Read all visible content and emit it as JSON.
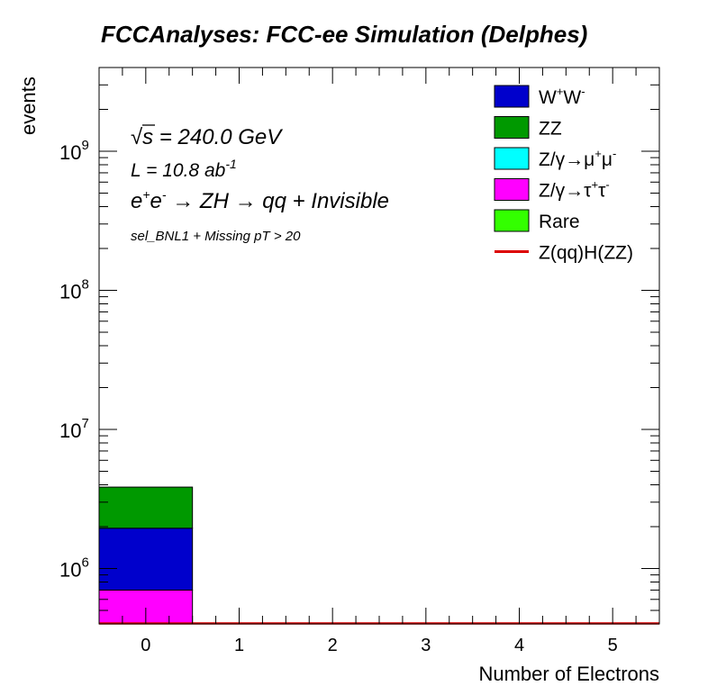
{
  "chart_data": {
    "type": "bar",
    "stacked": true,
    "title": "FCCAnalyses: FCC-ee Simulation (Delphes)",
    "xlabel": "Number of Electrons",
    "ylabel": "events",
    "ylog": true,
    "xlim": [
      -0.5,
      5.5
    ],
    "ylim": [
      400000,
      4000000000
    ],
    "x_ticks": [
      "0",
      "1",
      "2",
      "3",
      "4",
      "5"
    ],
    "y_ticks": [
      {
        "value": 1000000,
        "base": "10",
        "exp": "6"
      },
      {
        "value": 10000000,
        "base": "10",
        "exp": "7"
      },
      {
        "value": 100000000,
        "base": "10",
        "exp": "8"
      },
      {
        "value": 1000000000,
        "base": "10",
        "exp": "9"
      }
    ],
    "annotations": {
      "sqrt_s": {
        "root": "√",
        "s": "s",
        "rest": " = 240.0 GeV"
      },
      "lumi": {
        "main": "L = 10.8 ab",
        "sup": "-1"
      },
      "process": {
        "e1": "e",
        "sup1": "+",
        "e2": "e",
        "sup2": "-",
        "rest": " → ZH → qq + Invisible"
      },
      "selection": "sel_BNL1 + Missing pT > 20"
    },
    "series": [
      {
        "id": "tautau",
        "color": "#ff00ff",
        "values": [
          700000,
          0,
          0,
          0,
          0,
          0
        ]
      },
      {
        "id": "ww",
        "color": "#0000cc",
        "values": [
          1250000,
          0,
          0,
          0,
          0,
          0
        ]
      },
      {
        "id": "zz",
        "color": "#009900",
        "values": [
          1900000,
          0,
          0,
          0,
          0,
          0
        ]
      },
      {
        "id": "mumu",
        "color": "#00ffff",
        "values": [
          0,
          0,
          0,
          0,
          0,
          0
        ]
      },
      {
        "id": "rare",
        "color": "#33ff00",
        "values": [
          0,
          0,
          0,
          0,
          0,
          0
        ]
      }
    ],
    "signal": {
      "id": "zqq_hzz",
      "color": "#dd0000",
      "values": [
        0,
        0,
        0,
        0,
        0,
        0
      ]
    },
    "legend": [
      {
        "kind": "box",
        "color": "#0000cc",
        "parts": [
          [
            "W",
            ""
          ],
          [
            "+",
            "sup"
          ],
          [
            "W",
            ""
          ],
          [
            "-",
            "sup"
          ]
        ]
      },
      {
        "kind": "box",
        "color": "#009900",
        "parts": [
          [
            "ZZ",
            ""
          ]
        ]
      },
      {
        "kind": "box",
        "color": "#00ffff",
        "parts": [
          [
            "Z/γ→μ",
            ""
          ],
          [
            "+",
            "sup"
          ],
          [
            "μ",
            ""
          ],
          [
            "-",
            "sup"
          ]
        ]
      },
      {
        "kind": "box",
        "color": "#ff00ff",
        "parts": [
          [
            "Z/γ→τ",
            ""
          ],
          [
            "+",
            "sup"
          ],
          [
            "τ",
            ""
          ],
          [
            "-",
            "sup"
          ]
        ]
      },
      {
        "kind": "box",
        "color": "#33ff00",
        "parts": [
          [
            "Rare",
            ""
          ]
        ]
      },
      {
        "kind": "line",
        "color": "#dd0000",
        "parts": [
          [
            "Z(qq)H(ZZ)",
            ""
          ]
        ]
      }
    ],
    "legend_position": "top-right",
    "grid": false
  }
}
